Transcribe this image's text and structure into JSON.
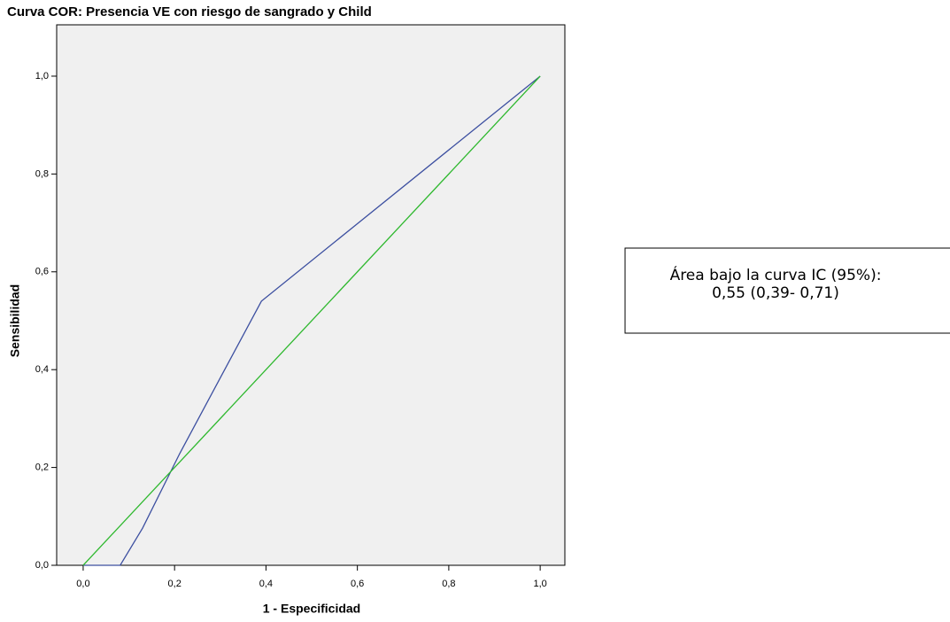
{
  "chart_data": {
    "type": "line",
    "title": "Curva COR: Presencia VE con riesgo de sangrado y Child",
    "xlabel": "1 - Especificidad",
    "ylabel": "Sensibilidad",
    "annotation": [
      "Área bajo la curva IC (95%):",
      "0,55 (0,39- 0,71)"
    ],
    "xlim": [
      -0.058,
      1.054
    ],
    "ylim": [
      0,
      1.105
    ],
    "xticks": [
      {
        "value": 0,
        "label": "0,0"
      },
      {
        "value": 0.2,
        "label": "0,2"
      },
      {
        "value": 0.4,
        "label": "0,4"
      },
      {
        "value": 0.6,
        "label": "0,6"
      },
      {
        "value": 0.8,
        "label": "0,8"
      },
      {
        "value": 1,
        "label": "1,0"
      }
    ],
    "yticks": [
      {
        "value": 0,
        "label": "0,0"
      },
      {
        "value": 0.2,
        "label": "0,2"
      },
      {
        "value": 0.4,
        "label": "0,4"
      },
      {
        "value": 0.6,
        "label": "0,6"
      },
      {
        "value": 0.8,
        "label": "0,8"
      },
      {
        "value": 1,
        "label": "1,0"
      }
    ],
    "background": "#f0f0f0",
    "series": [
      {
        "color": "#3c4fa0",
        "x": [
          0,
          0.081,
          0.13,
          0.211,
          0.39,
          1
        ],
        "values": [
          0,
          0,
          0.076,
          0.228,
          0.54,
          1
        ]
      },
      {
        "color": "#2eb82e",
        "x": [
          0,
          1
        ],
        "values": [
          0,
          1
        ]
      }
    ]
  }
}
